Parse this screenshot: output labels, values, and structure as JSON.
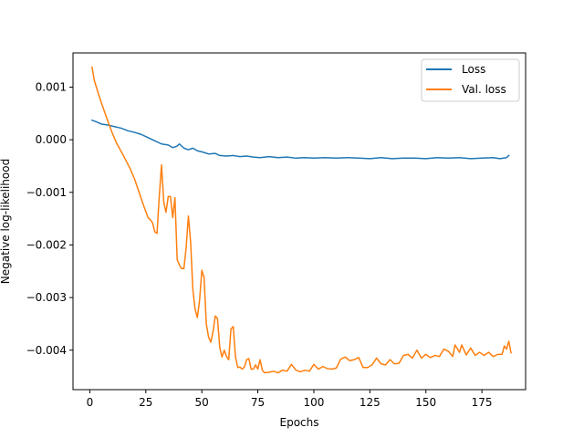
{
  "chart_data": {
    "type": "line",
    "title": "",
    "xlabel": "Epochs",
    "ylabel": "Negative log-likelihood",
    "xlim": [
      -7.5,
      194.5
    ],
    "ylim": [
      -0.00475,
      0.00165
    ],
    "x_ticks": [
      0,
      25,
      50,
      75,
      100,
      125,
      150,
      175
    ],
    "y_ticks": [
      -0.004,
      -0.003,
      -0.002,
      -0.001,
      0.0,
      0.001
    ],
    "x_tick_labels": [
      "0",
      "25",
      "50",
      "75",
      "100",
      "125",
      "150",
      "175"
    ],
    "y_tick_labels": [
      "−0.004",
      "−0.003",
      "−0.002",
      "−0.001",
      "0.000",
      "0.001"
    ],
    "grid": false,
    "legend_position": "top-right",
    "series": [
      {
        "name": "Loss",
        "color": "#1f77b4",
        "points": [
          [
            1,
            0.00037
          ],
          [
            3,
            0.00034
          ],
          [
            5,
            0.0003
          ],
          [
            8,
            0.00028
          ],
          [
            11,
            0.00025
          ],
          [
            14,
            0.00022
          ],
          [
            17,
            0.00017
          ],
          [
            20,
            0.00014
          ],
          [
            23,
            0.0001
          ],
          [
            26,
            4e-05
          ],
          [
            29,
            -2e-05
          ],
          [
            32,
            -8e-05
          ],
          [
            35,
            -0.0001
          ],
          [
            37,
            -0.00015
          ],
          [
            39,
            -0.00012
          ],
          [
            40,
            -8e-05
          ],
          [
            42,
            -0.00016
          ],
          [
            44,
            -0.00019
          ],
          [
            46,
            -0.00016
          ],
          [
            48,
            -0.00021
          ],
          [
            50,
            -0.00023
          ],
          [
            53,
            -0.00027
          ],
          [
            56,
            -0.00026
          ],
          [
            58,
            -0.0003
          ],
          [
            61,
            -0.00031
          ],
          [
            64,
            -0.0003
          ],
          [
            67,
            -0.00032
          ],
          [
            70,
            -0.00031
          ],
          [
            73,
            -0.00033
          ],
          [
            76,
            -0.00034
          ],
          [
            80,
            -0.00032
          ],
          [
            84,
            -0.00034
          ],
          [
            88,
            -0.00033
          ],
          [
            92,
            -0.00035
          ],
          [
            96,
            -0.00034
          ],
          [
            100,
            -0.00035
          ],
          [
            105,
            -0.00034
          ],
          [
            110,
            -0.00035
          ],
          [
            115,
            -0.00034
          ],
          [
            120,
            -0.00035
          ],
          [
            125,
            -0.00036
          ],
          [
            130,
            -0.00034
          ],
          [
            135,
            -0.00036
          ],
          [
            140,
            -0.00035
          ],
          [
            145,
            -0.00035
          ],
          [
            150,
            -0.00036
          ],
          [
            155,
            -0.00034
          ],
          [
            160,
            -0.00035
          ],
          [
            165,
            -0.00034
          ],
          [
            170,
            -0.00036
          ],
          [
            175,
            -0.00035
          ],
          [
            180,
            -0.00034
          ],
          [
            183,
            -0.00036
          ],
          [
            186,
            -0.00034
          ],
          [
            187,
            -0.0003
          ]
        ]
      },
      {
        "name": "Val. loss",
        "color": "#ff7f0e",
        "points": [
          [
            1,
            0.00138
          ],
          [
            2,
            0.00113
          ],
          [
            4,
            0.00085
          ],
          [
            6,
            0.0006
          ],
          [
            8,
            0.00036
          ],
          [
            10,
            0.00013
          ],
          [
            12,
            -7e-05
          ],
          [
            15,
            -0.0003
          ],
          [
            18,
            -0.00055
          ],
          [
            20,
            -0.00075
          ],
          [
            22,
            -0.001
          ],
          [
            24,
            -0.00125
          ],
          [
            26,
            -0.00148
          ],
          [
            27,
            -0.00152
          ],
          [
            28,
            -0.00158
          ],
          [
            29,
            -0.00175
          ],
          [
            30,
            -0.00178
          ],
          [
            31,
            -0.00108
          ],
          [
            32,
            -0.00048
          ],
          [
            33,
            -0.00118
          ],
          [
            34,
            -0.00138
          ],
          [
            35,
            -0.00108
          ],
          [
            36,
            -0.00108
          ],
          [
            37,
            -0.00148
          ],
          [
            38,
            -0.0011
          ],
          [
            39,
            -0.00228
          ],
          [
            40,
            -0.00238
          ],
          [
            41,
            -0.00245
          ],
          [
            42,
            -0.00245
          ],
          [
            43,
            -0.00205
          ],
          [
            44,
            -0.00145
          ],
          [
            45,
            -0.00195
          ],
          [
            46,
            -0.00285
          ],
          [
            47,
            -0.00322
          ],
          [
            48,
            -0.00338
          ],
          [
            49,
            -0.00305
          ],
          [
            50,
            -0.00248
          ],
          [
            51,
            -0.00262
          ],
          [
            52,
            -0.0035
          ],
          [
            53,
            -0.00375
          ],
          [
            54,
            -0.00385
          ],
          [
            55,
            -0.00365
          ],
          [
            56,
            -0.00335
          ],
          [
            57,
            -0.0034
          ],
          [
            58,
            -0.00395
          ],
          [
            59,
            -0.00413
          ],
          [
            60,
            -0.004
          ],
          [
            61,
            -0.00412
          ],
          [
            62,
            -0.00418
          ],
          [
            63,
            -0.0036
          ],
          [
            64,
            -0.00355
          ],
          [
            65,
            -0.00412
          ],
          [
            66,
            -0.00433
          ],
          [
            67,
            -0.00432
          ],
          [
            68,
            -0.00436
          ],
          [
            69,
            -0.00432
          ],
          [
            70,
            -0.00418
          ],
          [
            71,
            -0.00416
          ],
          [
            72,
            -0.00436
          ],
          [
            73,
            -0.00436
          ],
          [
            74,
            -0.00428
          ],
          [
            75,
            -0.00436
          ],
          [
            76,
            -0.00418
          ],
          [
            77,
            -0.00438
          ],
          [
            78,
            -0.00443
          ],
          [
            80,
            -0.00442
          ],
          [
            82,
            -0.0044
          ],
          [
            84,
            -0.00443
          ],
          [
            86,
            -0.00438
          ],
          [
            88,
            -0.0044
          ],
          [
            90,
            -0.00427
          ],
          [
            92,
            -0.00438
          ],
          [
            94,
            -0.00441
          ],
          [
            96,
            -0.00438
          ],
          [
            98,
            -0.0044
          ],
          [
            100,
            -0.00427
          ],
          [
            102,
            -0.00436
          ],
          [
            104,
            -0.00431
          ],
          [
            106,
            -0.00435
          ],
          [
            108,
            -0.00436
          ],
          [
            110,
            -0.00434
          ],
          [
            112,
            -0.00417
          ],
          [
            114,
            -0.00413
          ],
          [
            116,
            -0.0042
          ],
          [
            118,
            -0.00418
          ],
          [
            120,
            -0.00414
          ],
          [
            122,
            -0.00433
          ],
          [
            124,
            -0.00433
          ],
          [
            126,
            -0.00428
          ],
          [
            128,
            -0.00415
          ],
          [
            130,
            -0.00426
          ],
          [
            132,
            -0.00428
          ],
          [
            134,
            -0.00418
          ],
          [
            136,
            -0.00426
          ],
          [
            138,
            -0.00425
          ],
          [
            140,
            -0.0041
          ],
          [
            142,
            -0.00408
          ],
          [
            144,
            -0.00415
          ],
          [
            146,
            -0.004
          ],
          [
            148,
            -0.00415
          ],
          [
            150,
            -0.00408
          ],
          [
            152,
            -0.00414
          ],
          [
            154,
            -0.0041
          ],
          [
            156,
            -0.00412
          ],
          [
            158,
            -0.00398
          ],
          [
            160,
            -0.00402
          ],
          [
            162,
            -0.00412
          ],
          [
            163,
            -0.0039
          ],
          [
            165,
            -0.00404
          ],
          [
            166,
            -0.0039
          ],
          [
            168,
            -0.00409
          ],
          [
            170,
            -0.00396
          ],
          [
            172,
            -0.0041
          ],
          [
            174,
            -0.00404
          ],
          [
            176,
            -0.0041
          ],
          [
            178,
            -0.00404
          ],
          [
            180,
            -0.00412
          ],
          [
            182,
            -0.00408
          ],
          [
            184,
            -0.00408
          ],
          [
            185,
            -0.00392
          ],
          [
            186,
            -0.00398
          ],
          [
            187,
            -0.00383
          ],
          [
            188,
            -0.00405
          ]
        ]
      }
    ]
  }
}
